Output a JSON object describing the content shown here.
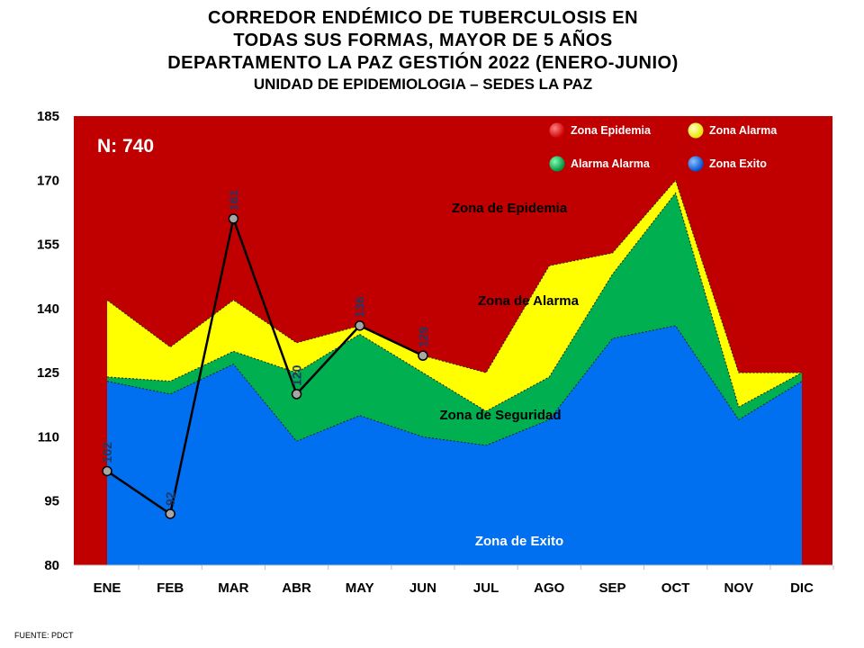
{
  "chart_data": {
    "type": "area",
    "title": [
      "CORREDOR ENDÉMICO DE TUBERCULOSIS EN",
      "TODAS SUS FORMAS, MAYOR DE 5 AÑOS",
      "DEPARTAMENTO LA PAZ GESTIÓN 2022 (ENERO-JUNIO)"
    ],
    "subtitle": "UNIDAD DE EPIDEMIOLOGIA – SEDES LA PAZ",
    "categories": [
      "ENE",
      "FEB",
      "MAR",
      "ABR",
      "MAY",
      "JUN",
      "JUL",
      "AGO",
      "SEP",
      "OCT",
      "NOV",
      "DIC"
    ],
    "ylim": [
      80,
      185
    ],
    "yticks": [
      80,
      95,
      110,
      125,
      140,
      155,
      170,
      185
    ],
    "series": [
      {
        "name": "Zona Alarma",
        "values": [
          142,
          131,
          142,
          132,
          136,
          129,
          125,
          150,
          153,
          170,
          125,
          125
        ],
        "color": "#ffff00"
      },
      {
        "name": "Alarma  Alarma",
        "values": [
          124,
          123,
          130,
          125,
          134,
          125,
          116,
          124,
          148,
          167,
          117,
          125
        ],
        "color": "#00b050"
      },
      {
        "name": "Zona Exito",
        "values": [
          123,
          120,
          127,
          109,
          115,
          110,
          108,
          114,
          133,
          136,
          114,
          123
        ],
        "color": "#0070f0"
      }
    ],
    "background_zone": {
      "name": "Zona Epidemia",
      "color": "#c00000"
    },
    "observed": {
      "categories": [
        "ENE",
        "FEB",
        "MAR",
        "ABR",
        "MAY",
        "JUN"
      ],
      "values": [
        102,
        92,
        161,
        120,
        136,
        129
      ],
      "labels": [
        "102",
        "92",
        "161",
        "120",
        "136",
        "129"
      ]
    },
    "legend": {
      "position": "top-right",
      "items": [
        {
          "label": "Zona Epidemia",
          "color": "#e00000"
        },
        {
          "label": "Zona  Alarma",
          "color": "#ffff00"
        },
        {
          "label": "Alarma  Alarma",
          "color": "#00b050"
        },
        {
          "label": "Zona Exito",
          "color": "#1a6cff"
        }
      ]
    },
    "annotations": {
      "total": "N: 740",
      "zone_epidemia": "Zona de Epidemia",
      "zone_alarma": "Zona de Alarma",
      "zone_seguridad": "Zona de Seguridad",
      "zone_exito": "Zona de Exito"
    }
  },
  "footer": "FUENTE:   PDCT"
}
